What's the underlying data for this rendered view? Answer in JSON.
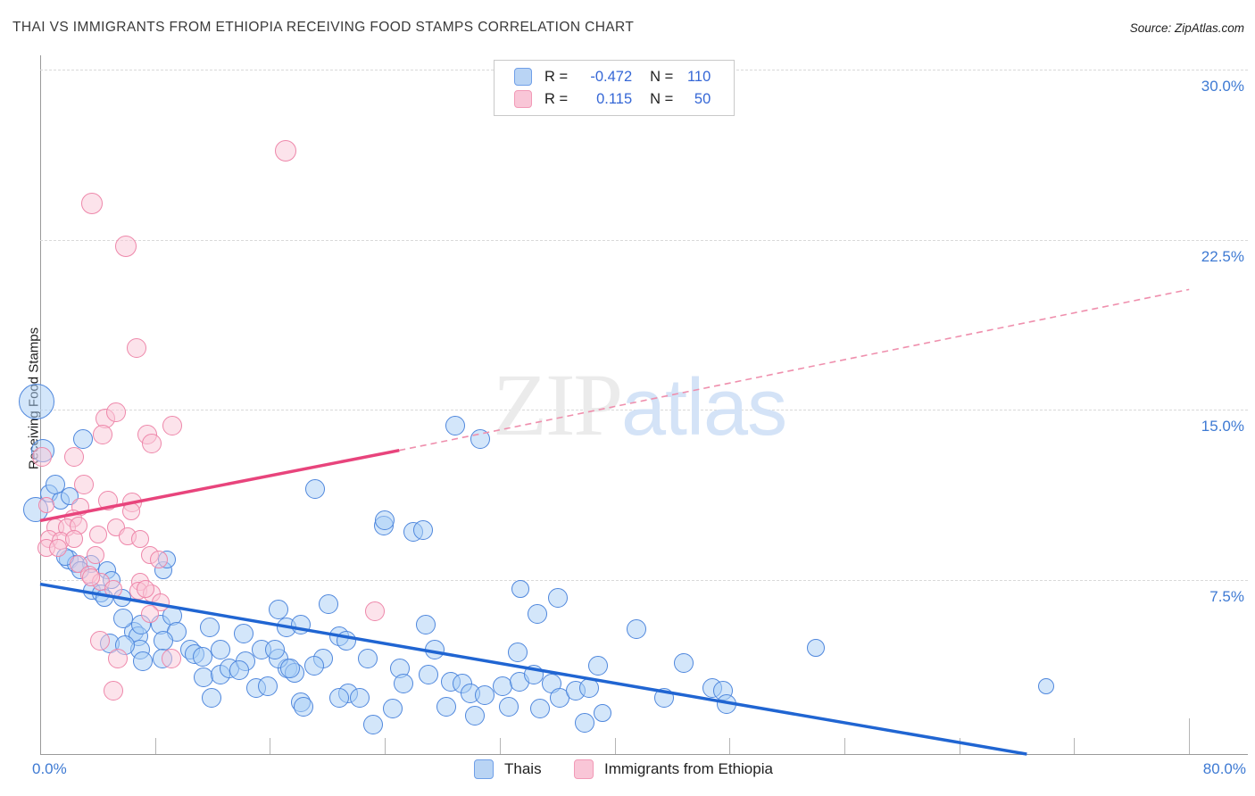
{
  "title": "THAI VS IMMIGRANTS FROM ETHIOPIA RECEIVING FOOD STAMPS CORRELATION CHART",
  "source": "Source: ZipAtlas.com",
  "watermark": {
    "zip": "ZIP",
    "atlas": "atlas"
  },
  "y_axis": {
    "label": "Receiving Food Stamps",
    "ticks": [
      {
        "label": "30.0%",
        "value": 30
      },
      {
        "label": "22.5%",
        "value": 22.5
      },
      {
        "label": "15.0%",
        "value": 15
      },
      {
        "label": "7.5%",
        "value": 7.5
      }
    ]
  },
  "x_axis": {
    "min_label": "0.0%",
    "max_label": "80.0%",
    "tick_values": [
      8,
      16,
      24,
      32,
      40,
      48,
      56,
      64,
      72,
      80
    ]
  },
  "legend_box": {
    "rows": [
      {
        "series": "Thais",
        "r_label": "R =",
        "r_value": "-0.472",
        "n_label": "N =",
        "n_value": "110"
      },
      {
        "series": "Immigrants from Ethiopia",
        "r_label": "R =",
        "r_value": "0.115",
        "n_label": "N =",
        "n_value": "50"
      }
    ]
  },
  "bottom_legend": [
    {
      "label": "Thais",
      "color": "blue"
    },
    {
      "label": "Immigrants from Ethiopia",
      "color": "pink"
    }
  ],
  "colors": {
    "blue_stroke": "#4f87dd",
    "blue_fill": "rgba(168,205,245,0.5)",
    "blue_trend": "#2065d2",
    "pink_stroke": "#ee87aa",
    "pink_fill": "rgba(250,200,216,0.5)",
    "pink_trend": "#e8447c",
    "pink_trend_dashed": "#ef8fad",
    "axis_label_blue": "#3e7ad3"
  },
  "chart_data": {
    "type": "scatter",
    "xlabel": "",
    "ylabel": "Receiving Food Stamps",
    "x_range": [
      0,
      80
    ],
    "y_range": [
      0,
      30
    ],
    "grid": "horizontal-dashed",
    "legend_position": "bottom-center",
    "series": [
      {
        "name": "Thais",
        "R": -0.472,
        "N": 110,
        "trend_solid": [
          [
            0,
            7.3
          ],
          [
            68.7,
            -0.2
          ]
        ],
        "points": [
          [
            -0.25,
            15.35,
            20
          ],
          [
            0.19,
            13.2,
            13
          ],
          [
            -0.31,
            10.6,
            14
          ],
          [
            2.98,
            13.7,
            11
          ],
          [
            0.62,
            11.3,
            10
          ],
          [
            1.43,
            11.0,
            10
          ],
          [
            2.05,
            11.2,
            10
          ],
          [
            1.06,
            11.7,
            11
          ],
          [
            1.99,
            8.4,
            11
          ],
          [
            2.49,
            8.2,
            10
          ],
          [
            3.54,
            8.2,
            10
          ],
          [
            4.66,
            7.9,
            10
          ],
          [
            4.97,
            7.5,
            10
          ],
          [
            3.6,
            7.0,
            10
          ],
          [
            4.23,
            6.9,
            10
          ],
          [
            2.8,
            7.9,
            10
          ],
          [
            1.74,
            8.5,
            10
          ],
          [
            4.47,
            6.7,
            10
          ],
          [
            5.72,
            6.7,
            10
          ],
          [
            6.53,
            5.2,
            11
          ],
          [
            6.84,
            5.0,
            11
          ],
          [
            5.78,
            5.8,
            11
          ],
          [
            7.02,
            5.5,
            11
          ],
          [
            8.39,
            5.5,
            11
          ],
          [
            8.58,
            7.9,
            10
          ],
          [
            8.83,
            8.4,
            10
          ],
          [
            9.2,
            5.9,
            11
          ],
          [
            9.51,
            5.2,
            11
          ],
          [
            10.44,
            4.4,
            11
          ],
          [
            10.75,
            4.2,
            11
          ],
          [
            11.81,
            5.4,
            11
          ],
          [
            12.55,
            4.4,
            11
          ],
          [
            14.17,
            5.1,
            11
          ],
          [
            15.41,
            4.4,
            11
          ],
          [
            6.96,
            4.4,
            11
          ],
          [
            4.85,
            4.7,
            11
          ],
          [
            5.9,
            4.6,
            11
          ],
          [
            8.58,
            4.8,
            11
          ],
          [
            7.15,
            3.9,
            11
          ],
          [
            8.51,
            4.0,
            11
          ],
          [
            11.31,
            4.1,
            11
          ],
          [
            11.37,
            3.2,
            11
          ],
          [
            12.55,
            3.3,
            11
          ],
          [
            13.18,
            3.6,
            11
          ],
          [
            14.29,
            3.9,
            11
          ],
          [
            13.86,
            3.5,
            11
          ],
          [
            15.04,
            2.7,
            11
          ],
          [
            15.85,
            2.8,
            11
          ],
          [
            11.93,
            2.3,
            11
          ],
          [
            17.22,
            3.6,
            11
          ],
          [
            17.71,
            3.4,
            11
          ],
          [
            16.59,
            4.0,
            11
          ],
          [
            18.15,
            2.1,
            11
          ],
          [
            16.59,
            6.2,
            11
          ],
          [
            20.07,
            6.4,
            11
          ],
          [
            17.15,
            5.4,
            11
          ],
          [
            18.15,
            5.5,
            11
          ],
          [
            20.82,
            5.0,
            11
          ],
          [
            21.32,
            4.8,
            11
          ],
          [
            26.85,
            5.5,
            11
          ],
          [
            16.35,
            4.4,
            11
          ],
          [
            19.7,
            4.0,
            11
          ],
          [
            22.81,
            4.0,
            11
          ],
          [
            17.4,
            3.6,
            11
          ],
          [
            19.08,
            3.7,
            11
          ],
          [
            25.05,
            3.6,
            11
          ],
          [
            27.47,
            4.4,
            11
          ],
          [
            25.3,
            2.9,
            11
          ],
          [
            27.04,
            3.3,
            11
          ],
          [
            28.59,
            3.0,
            11
          ],
          [
            29.4,
            2.9,
            11
          ],
          [
            29.96,
            2.5,
            11
          ],
          [
            30.95,
            2.4,
            11
          ],
          [
            32.19,
            2.8,
            11
          ],
          [
            32.63,
            1.9,
            11
          ],
          [
            18.33,
            1.9,
            11
          ],
          [
            21.44,
            2.5,
            11
          ],
          [
            22.25,
            2.3,
            11
          ],
          [
            20.82,
            2.3,
            11
          ],
          [
            23.18,
            1.1,
            11
          ],
          [
            24.55,
            1.8,
            11
          ],
          [
            28.28,
            1.9,
            11
          ],
          [
            30.27,
            1.5,
            11
          ],
          [
            33.37,
            3.0,
            11
          ],
          [
            33.25,
            4.3,
            11
          ],
          [
            33.44,
            7.1,
            10
          ],
          [
            34.62,
            6.0,
            11
          ],
          [
            36.05,
            6.7,
            11
          ],
          [
            34.37,
            3.3,
            11
          ],
          [
            35.61,
            2.9,
            11
          ],
          [
            36.17,
            2.3,
            11
          ],
          [
            34.8,
            1.8,
            11
          ],
          [
            37.29,
            2.6,
            11
          ],
          [
            37.91,
            1.2,
            11
          ],
          [
            25.98,
            9.6,
            11
          ],
          [
            26.66,
            9.7,
            11
          ],
          [
            23.93,
            9.9,
            11
          ],
          [
            19.14,
            11.5,
            11
          ],
          [
            23.99,
            10.1,
            11
          ],
          [
            28.9,
            14.3,
            11
          ],
          [
            30.64,
            13.7,
            11
          ],
          [
            41.52,
            5.3,
            11
          ],
          [
            54.01,
            4.5,
            10
          ],
          [
            44.81,
            3.8,
            11
          ],
          [
            38.84,
            3.7,
            11
          ],
          [
            38.22,
            2.7,
            11
          ],
          [
            43.44,
            2.3,
            11
          ],
          [
            46.8,
            2.7,
            11
          ],
          [
            47.54,
            2.6,
            11
          ],
          [
            47.79,
            2.0,
            11
          ],
          [
            39.15,
            1.6,
            10
          ],
          [
            70.04,
            2.8,
            9
          ]
        ]
      },
      {
        "name": "Immigrants from Ethiopia",
        "R": 0.115,
        "N": 50,
        "trend_solid": [
          [
            0,
            10.1
          ],
          [
            25.0,
            13.2
          ]
        ],
        "trend_dashed": [
          [
            25.0,
            13.2
          ],
          [
            80.0,
            20.3
          ]
        ],
        "points": [
          [
            17.09,
            26.4,
            12
          ],
          [
            3.6,
            24.1,
            12
          ],
          [
            5.97,
            22.2,
            12
          ],
          [
            6.71,
            17.7,
            11
          ],
          [
            4.54,
            14.6,
            11
          ],
          [
            5.28,
            14.9,
            11
          ],
          [
            9.2,
            14.3,
            11
          ],
          [
            4.35,
            13.9,
            11
          ],
          [
            7.46,
            13.9,
            11
          ],
          [
            7.77,
            13.5,
            11
          ],
          [
            2.36,
            12.9,
            11
          ],
          [
            0.1,
            12.9,
            11
          ],
          [
            3.05,
            11.7,
            11
          ],
          [
            4.72,
            11.0,
            11
          ],
          [
            6.4,
            10.9,
            11
          ],
          [
            0.44,
            10.8,
            9
          ],
          [
            2.8,
            10.7,
            10
          ],
          [
            6.34,
            10.5,
            10
          ],
          [
            2.3,
            10.2,
            10
          ],
          [
            1.06,
            9.8,
            10
          ],
          [
            1.86,
            9.8,
            10
          ],
          [
            2.67,
            9.9,
            10
          ],
          [
            0.62,
            9.3,
            10
          ],
          [
            1.43,
            9.2,
            10
          ],
          [
            2.36,
            9.3,
            10
          ],
          [
            0.44,
            8.9,
            10
          ],
          [
            1.24,
            8.9,
            10
          ],
          [
            5.28,
            9.8,
            10
          ],
          [
            6.09,
            9.4,
            10
          ],
          [
            6.96,
            9.3,
            10
          ],
          [
            4.04,
            9.5,
            10
          ],
          [
            3.85,
            8.6,
            10
          ],
          [
            7.64,
            8.6,
            10
          ],
          [
            8.27,
            8.4,
            10
          ],
          [
            2.67,
            8.2,
            10
          ],
          [
            3.42,
            7.7,
            10
          ],
          [
            4.23,
            7.4,
            10
          ],
          [
            6.96,
            7.4,
            10
          ],
          [
            6.84,
            7.0,
            10
          ],
          [
            7.77,
            6.9,
            10
          ],
          [
            3.54,
            7.6,
            10
          ],
          [
            5.1,
            7.1,
            10
          ],
          [
            7.33,
            7.1,
            10
          ],
          [
            8.39,
            6.5,
            10
          ],
          [
            7.64,
            6.0,
            10
          ],
          [
            4.16,
            4.8,
            11
          ],
          [
            5.41,
            4.0,
            11
          ],
          [
            9.14,
            4.0,
            11
          ],
          [
            5.1,
            2.6,
            11
          ],
          [
            23.31,
            6.1,
            11
          ]
        ]
      }
    ]
  }
}
